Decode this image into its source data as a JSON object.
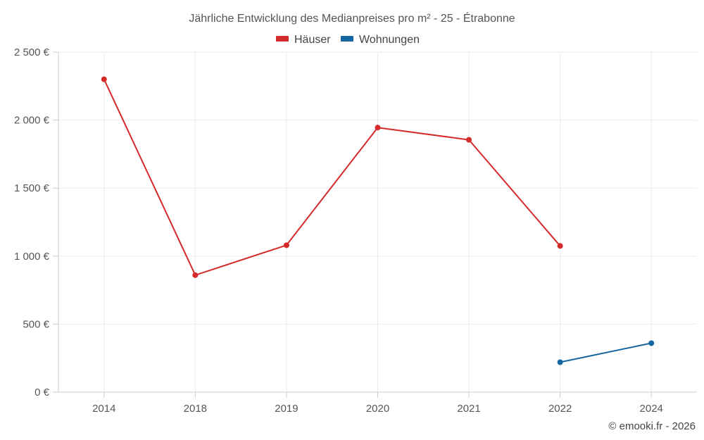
{
  "chart_data": {
    "type": "line",
    "title": "Jährliche Entwicklung des Medianpreises pro m² - 25 - Étrabonne",
    "categories": [
      "2014",
      "2018",
      "2019",
      "2020",
      "2021",
      "2022",
      "2024"
    ],
    "ylim": [
      0,
      2500
    ],
    "yticks": [
      0,
      500,
      1000,
      1500,
      2000,
      2500
    ],
    "ytick_labels": [
      "0 €",
      "500 €",
      "1 000 €",
      "1 500 €",
      "2 000 €",
      "2 500 €"
    ],
    "xlabel": "",
    "ylabel": "",
    "grid": true,
    "legend_position": "top-center",
    "series": [
      {
        "name": "Häuser",
        "color": "#d42a2a",
        "values": [
          2300,
          860,
          1080,
          1945,
          1855,
          1075,
          null
        ]
      },
      {
        "name": "Wohnungen",
        "color": "#1565a0",
        "values": [
          null,
          null,
          null,
          null,
          null,
          220,
          360
        ]
      }
    ]
  },
  "credit": "© emooki.fr - 2026"
}
